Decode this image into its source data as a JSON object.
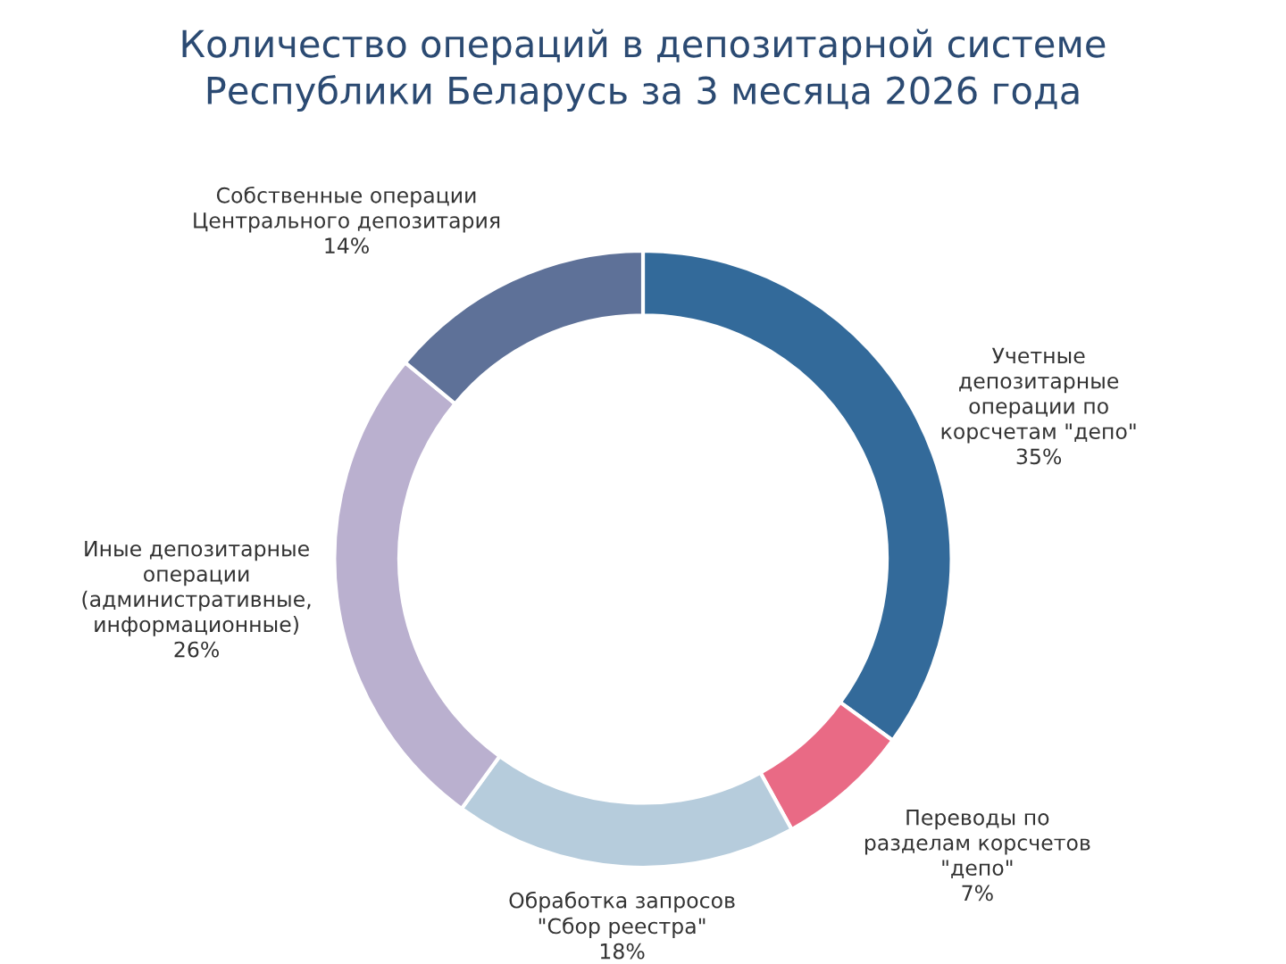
{
  "chart_data": {
    "type": "donut",
    "title": "Количество операций в депозитарной системе\nРеспублики Беларусь за 3 месяца 2026 года",
    "categories": [
      "Учетные\nдепозитарные\nоперации по\nкорсчетам \"депо\"",
      "Переводы по\nразделам корсчетов\n\"депо\"",
      "Обработка запросов\n\"Сбор реестра\"",
      "Иные депозитарные\nоперации\n(административные,\nинформационные)",
      "Собственные операции\nЦентрального депозитария"
    ],
    "values": [
      35,
      7,
      18,
      26,
      14
    ],
    "colors": [
      "#336a9a",
      "#e96a85",
      "#b6ccdc",
      "#bab0cf",
      "#5e7198"
    ],
    "value_labels": [
      "35%",
      "7%",
      "18%",
      "26%",
      "14%"
    ]
  }
}
